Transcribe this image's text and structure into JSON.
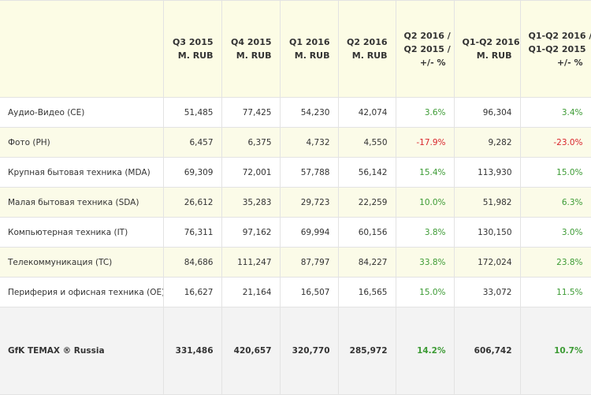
{
  "table": {
    "headers": [
      [],
      [
        "Q3 2015",
        "M. RUB"
      ],
      [
        "Q4 2015",
        "M. RUB"
      ],
      [
        "Q1 2016",
        "M. RUB"
      ],
      [
        "Q2 2016",
        "M. RUB"
      ],
      [
        "Q2 2016 /",
        "Q2 2015 /",
        "+/- %"
      ],
      [
        "Q1-Q2 2016",
        "M. RUB"
      ],
      [
        "Q1-Q2 2016 /",
        "Q1-Q2 2015",
        "+/- %"
      ]
    ],
    "rows": [
      [
        "Аудио-Видео (CE)",
        "51,485",
        "77,425",
        "54,230",
        "42,074",
        "3.6%",
        "96,304",
        "3.4%"
      ],
      [
        "Фото (PH)",
        "6,457",
        "6,375",
        "4,732",
        "4,550",
        "-17.9%",
        "9,282",
        "-23.0%"
      ],
      [
        "Крупная бытовая техника (MDA)",
        "69,309",
        "72,001",
        "57,788",
        "56,142",
        "15.4%",
        "113,930",
        "15.0%"
      ],
      [
        "Малая бытовая техника (SDA)",
        "26,612",
        "35,283",
        "29,723",
        "22,259",
        "10.0%",
        "51,982",
        "6.3%"
      ],
      [
        "Компьютерная техника (IT)",
        "76,311",
        "97,162",
        "69,994",
        "60,156",
        "3.8%",
        "130,150",
        "3.0%"
      ],
      [
        "Телекоммуникация (TC)",
        "84,686",
        "111,247",
        "87,797",
        "84,227",
        "33.8%",
        "172,024",
        "23.8%"
      ],
      [
        "Периферия и офисная техника (OE)",
        "16,627",
        "21,164",
        "16,507",
        "16,565",
        "15.0%",
        "33,072",
        "11.5%"
      ]
    ],
    "total": [
      "GfK TEMAX ® Russia",
      "331,486",
      "420,657",
      "320,770",
      "285,972",
      "14.2%",
      "606,742",
      "10.7%"
    ]
  }
}
